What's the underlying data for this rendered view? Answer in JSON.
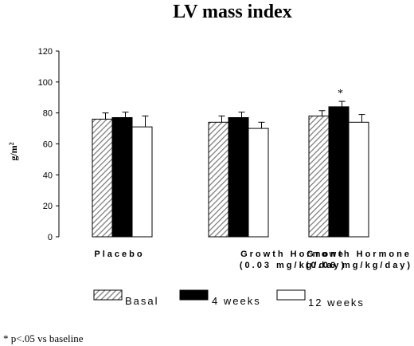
{
  "chart_data": {
    "type": "bar",
    "title": "LV mass index",
    "ylabel": "g/m",
    "ylabel_superscript": "2",
    "ylim": [
      0,
      120
    ],
    "yticks": [
      "0",
      "20",
      "40",
      "60",
      "80",
      "100",
      "120"
    ],
    "grid": false,
    "legend_position": "bottom",
    "categories": [
      {
        "line1": "Placebo",
        "line2": ""
      },
      {
        "line1": "Growth Hormone",
        "line2": "(0.03 mg/kg/day)"
      },
      {
        "line1": "Growth Hormone",
        "line2": "(0.06 mg/kg/day)"
      }
    ],
    "series": [
      {
        "name": "Basal",
        "fill": "hatch",
        "values": [
          76,
          74,
          78
        ],
        "errors": [
          4,
          4,
          3.5
        ]
      },
      {
        "name": "4 weeks",
        "fill": "#000000",
        "values": [
          77,
          77,
          84
        ],
        "errors": [
          3.5,
          3.5,
          3.5
        ]
      },
      {
        "name": "12 weeks",
        "fill": "#ffffff",
        "values": [
          71,
          70,
          74
        ],
        "errors": [
          7,
          4,
          5
        ]
      }
    ],
    "annotations": [
      {
        "text": "*",
        "category_index": 2,
        "series_index": 1
      }
    ],
    "footnote": "* p<.05 vs baseline"
  }
}
